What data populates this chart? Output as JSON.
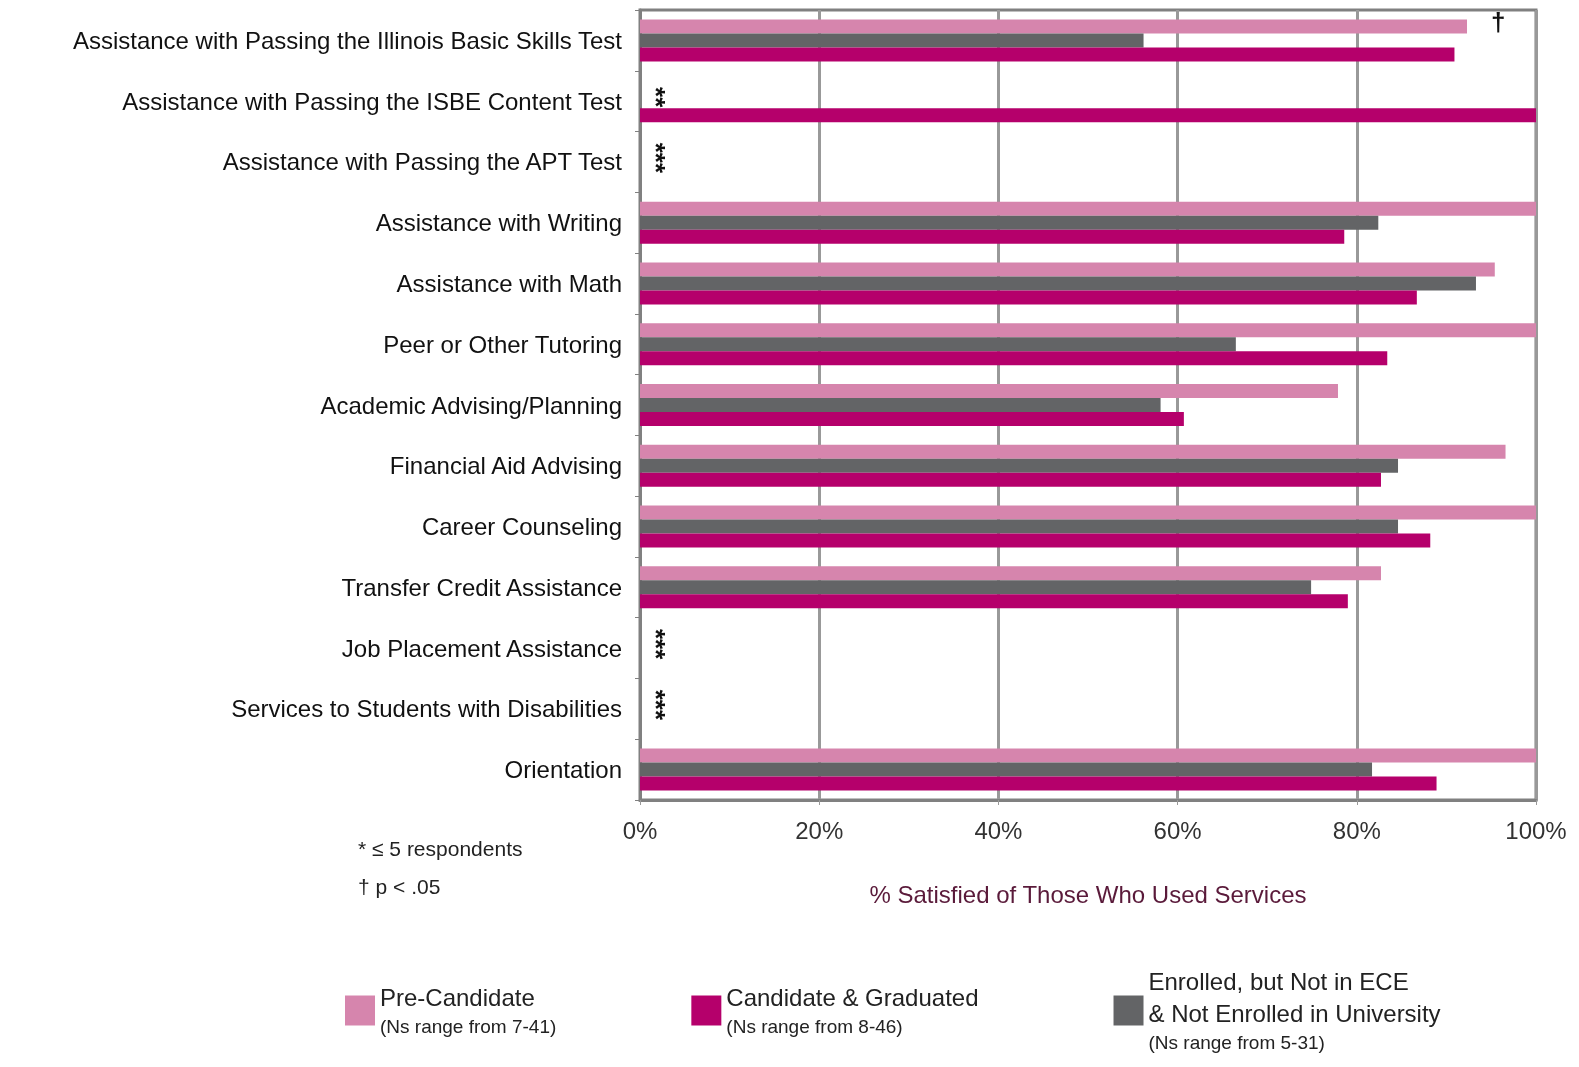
{
  "chart_data": {
    "type": "bar",
    "orientation": "horizontal",
    "xlabel": "% Satisfied of Those Who Used Services",
    "categories": [
      "Assistance with Passing the Illinois Basic Skills Test",
      "Assistance with Passing the ISBE Content Test",
      "Assistance with Passing the APT Test",
      "Assistance with Writing",
      "Assistance with Math",
      "Peer or Other Tutoring",
      "Academic Advising/Planning",
      "Financial Aid Advising",
      "Career Counseling",
      "Transfer Credit Assistance",
      "Job Placement Assistance",
      "Services to Students with Disabilities",
      "Orientation"
    ],
    "series": [
      {
        "name": "Pre-Candidate\n(Ns range from 7-41)",
        "color": "#d685ad",
        "values": [
          92.3,
          null,
          null,
          100,
          95.4,
          100,
          77.9,
          96.6,
          100,
          82.7,
          null,
          null,
          100
        ]
      },
      {
        "name": "Enrolled, but Not in ECE\n& Not Enrolled in University\n(Ns range from 5-31)",
        "color": "#636466",
        "values": [
          56.2,
          null,
          null,
          82.4,
          93.3,
          66.5,
          58.1,
          84.6,
          84.6,
          74.9,
          null,
          null,
          81.7
        ]
      },
      {
        "name": "Candidate & Graduated\n(Ns range from 8-46)",
        "color": "#b5006b",
        "values": [
          90.9,
          100,
          null,
          78.6,
          86.7,
          83.4,
          60.7,
          82.7,
          88.2,
          79.0,
          null,
          null,
          88.9
        ]
      }
    ],
    "xlim": [
      0,
      100
    ],
    "xticks": [
      {
        "value": 0,
        "label": "0%"
      },
      {
        "value": 20,
        "label": "20%"
      },
      {
        "value": 40,
        "label": "40%"
      },
      {
        "value": 60,
        "label": "60%"
      },
      {
        "value": 80,
        "label": "80%"
      },
      {
        "value": 100,
        "label": "100%"
      }
    ],
    "grid": "x",
    "legend": "bottom",
    "annotations": [
      "†",
      "**",
      "***",
      "***",
      "***",
      "* ≤ 5 respondents",
      "† p < .05"
    ]
  }
}
